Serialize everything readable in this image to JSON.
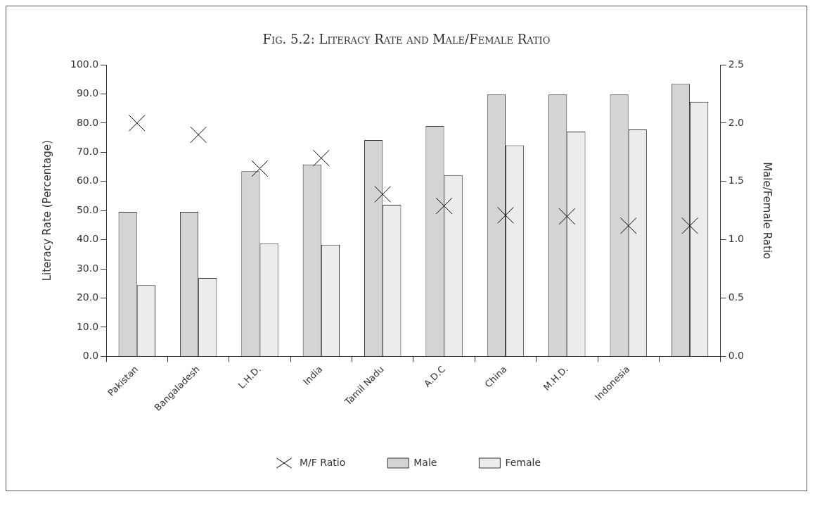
{
  "chart_data": {
    "type": "bar",
    "title": "Fig. 5.2: Literacy Rate and Male/Female Ratio",
    "ylabel": "Literacy Rate (Percentage)",
    "y2label": "Male/Female Ratio",
    "categories": [
      "Pakistan",
      "Bangaladesh",
      "L.H.D.",
      "India",
      "Tamil Nadu",
      "A.D.C",
      "China",
      "M.H.D.",
      "Indonesia",
      null
    ],
    "series": [
      {
        "name": "Male",
        "color": "#d4d4d4",
        "values": [
          49.6,
          49.6,
          63.5,
          65.8,
          74.2,
          79.0,
          89.8,
          89.8,
          89.8,
          93.4
        ]
      },
      {
        "name": "Female",
        "color": "#ececec",
        "values": [
          24.4,
          26.9,
          38.8,
          38.3,
          52.0,
          62.2,
          72.4,
          77.1,
          77.8,
          87.3
        ]
      },
      {
        "name": "M/F Ratio",
        "type": "scatter",
        "axis": "y2",
        "marker": "cross",
        "color": "#000000",
        "values": [
          2.0,
          1.9,
          1.61,
          1.7,
          1.39,
          1.29,
          1.21,
          1.2,
          1.12,
          1.12
        ]
      }
    ],
    "ylim": [
      0,
      100
    ],
    "yticks": [
      {
        "value": 0,
        "label": "0.0"
      },
      {
        "value": 10,
        "label": "10.0"
      },
      {
        "value": 20,
        "label": "20.0"
      },
      {
        "value": 30,
        "label": "30.0"
      },
      {
        "value": 40,
        "label": "40.0"
      },
      {
        "value": 50,
        "label": "50.0"
      },
      {
        "value": 60,
        "label": "60.0"
      },
      {
        "value": 70,
        "label": "70.0"
      },
      {
        "value": 80,
        "label": "80.0"
      },
      {
        "value": 90,
        "label": "90.0"
      },
      {
        "value": 100,
        "label": "100.0"
      }
    ],
    "y2lim": [
      0,
      2.5
    ],
    "y2ticks": [
      {
        "value": 0,
        "label": "0.0"
      },
      {
        "value": 0.5,
        "label": "0.5"
      },
      {
        "value": 1,
        "label": "1.0"
      },
      {
        "value": 1.5,
        "label": "1.5"
      },
      {
        "value": 2,
        "label": "2.0"
      },
      {
        "value": 2.5,
        "label": "2.5"
      }
    ],
    "grid": false,
    "legend": "bottom"
  }
}
